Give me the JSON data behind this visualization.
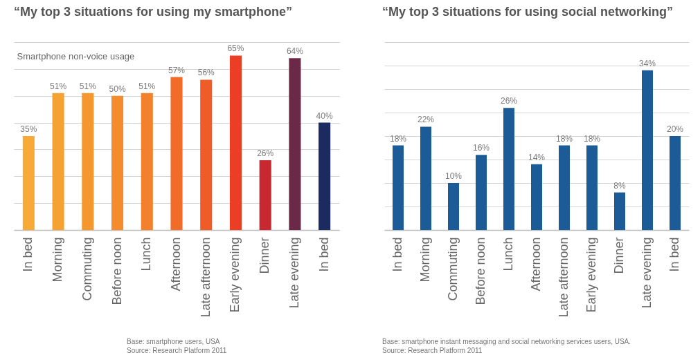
{
  "chart_data": [
    {
      "type": "bar",
      "title": "“My top 3 situations for using my smartphone”",
      "ylabel": "Smartphone non-voice usage",
      "categories": [
        "In bed",
        "Morning",
        "Commuting",
        "Before noon",
        "Lunch",
        "Afternoon",
        "Late afternoon",
        "Early evening",
        "Dinner",
        "Late evening",
        "In bed"
      ],
      "values": [
        35,
        51,
        51,
        50,
        51,
        57,
        56,
        65,
        26,
        64,
        40
      ],
      "colors": [
        "#f7aa35",
        "#f6a232",
        "#f5972f",
        "#f48c2d",
        "#f3812b",
        "#f16c29",
        "#ef5c27",
        "#ec3e24",
        "#c8282f",
        "#6b2947",
        "#1c2b5f"
      ],
      "value_labels": [
        "35%",
        "51%",
        "51%",
        "50%",
        "51%",
        "57%",
        "56%",
        "65%",
        "26%",
        "64%",
        "40%"
      ],
      "ylim": [
        0,
        70
      ],
      "yticks": [
        {
          "value": 0,
          "label": null
        },
        {
          "value": 10,
          "label": null
        },
        {
          "value": 20,
          "label": null
        },
        {
          "value": 30,
          "label": null
        },
        {
          "value": 40,
          "label": null
        },
        {
          "value": 50,
          "label": null
        },
        {
          "value": 60,
          "label": null
        },
        {
          "value": 70,
          "label": null
        }
      ],
      "grid": "y",
      "tick_labels": "x",
      "annotations": [
        "Base: smartphone users, USA",
        "Source: Research Platform 2011"
      ]
    },
    {
      "type": "bar",
      "title": "“My top 3 situations for using social networking”",
      "categories": [
        "In bed",
        "Morning",
        "Commuting",
        "Before noon",
        "Lunch",
        "Afternoon",
        "Late afternoon",
        "Early evening",
        "Dinner",
        "Late evening",
        "In bed"
      ],
      "values": [
        18,
        22,
        10,
        16,
        26,
        14,
        18,
        18,
        8,
        34,
        20
      ],
      "color": "#1a5b98",
      "value_labels": [
        "18%",
        "22%",
        "10%",
        "16%",
        "26%",
        "14%",
        "18%",
        "18%",
        "8%",
        "34%",
        "20%"
      ],
      "ylim": [
        0,
        40
      ],
      "yticks": [
        {
          "value": 0,
          "label": null
        },
        {
          "value": 5,
          "label": null
        },
        {
          "value": 10,
          "label": null
        },
        {
          "value": 15,
          "label": null
        },
        {
          "value": 20,
          "label": null
        },
        {
          "value": 25,
          "label": null
        },
        {
          "value": 30,
          "label": null
        },
        {
          "value": 35,
          "label": null
        },
        {
          "value": 40,
          "label": null
        }
      ],
      "grid": "y",
      "tick_labels": "x",
      "annotations": [
        "Base: smartphone instant messaging and social networking services users, USA. Source: Research Platform 2011"
      ]
    }
  ]
}
